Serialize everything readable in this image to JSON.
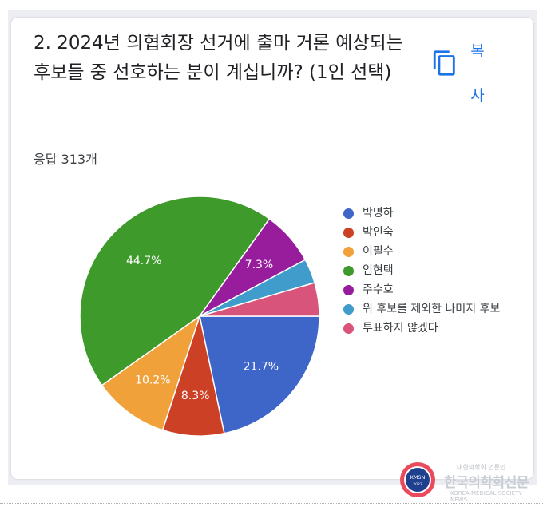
{
  "question": {
    "title": "2. 2024년 의협회장 선거에 출마 거론 예상되는 후보들 중 선호하는 분이 계십니까? (1인 선택)",
    "response_count": "응답 313개"
  },
  "copy_button": {
    "label": "복사",
    "icon": "copy-icon",
    "color": "#1a73e8"
  },
  "chart_data": {
    "type": "pie",
    "slices": [
      {
        "label": "박명하",
        "value": 21.7,
        "color": "#3e66c9",
        "data_label": "21.7%"
      },
      {
        "label": "박인숙",
        "value": 8.3,
        "color": "#cc4125",
        "data_label": "8.3%"
      },
      {
        "label": "이필수",
        "value": 10.2,
        "color": "#f0a13a",
        "data_label": "10.2%"
      },
      {
        "label": "임현택",
        "value": 44.7,
        "color": "#3f9a2c",
        "data_label": "44.7%"
      },
      {
        "label": "주수호",
        "value": 7.3,
        "color": "#971d9c",
        "data_label": "7.3%"
      },
      {
        "label": "위 후보를 제외한 나머지 후보",
        "value": 3.3,
        "color": "#3f9ccb",
        "data_label": ""
      },
      {
        "label": "투표하지 않겠다",
        "value": 4.5,
        "color": "#d9547a",
        "data_label": ""
      }
    ],
    "start_angle_deg": 90,
    "direction": "clockwise",
    "legend_position": "right"
  },
  "watermark": {
    "seal_text": "KMSN",
    "seal_year": "2023",
    "small_text": "대한의학회 언론인",
    "title": "한국의학회신문",
    "english": "KOREA MEDICAL SOCIETY NEWS"
  }
}
